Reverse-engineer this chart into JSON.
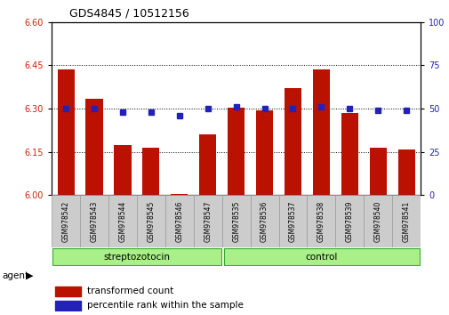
{
  "title": "GDS4845 / 10512156",
  "categories": [
    "GSM978542",
    "GSM978543",
    "GSM978544",
    "GSM978545",
    "GSM978546",
    "GSM978547",
    "GSM978535",
    "GSM978536",
    "GSM978537",
    "GSM978538",
    "GSM978539",
    "GSM978540",
    "GSM978541"
  ],
  "red_values": [
    6.435,
    6.335,
    6.175,
    6.165,
    6.005,
    6.21,
    6.305,
    6.295,
    6.37,
    6.435,
    6.285,
    6.165,
    6.16
  ],
  "blue_values": [
    50,
    50,
    48,
    48,
    46,
    50,
    51,
    50,
    50,
    51,
    50,
    49,
    49
  ],
  "ylim_left": [
    6.0,
    6.6
  ],
  "ylim_right": [
    0,
    100
  ],
  "yticks_left": [
    6.0,
    6.15,
    6.3,
    6.45,
    6.6
  ],
  "yticks_right": [
    0,
    25,
    50,
    75,
    100
  ],
  "grid_lines": [
    6.15,
    6.3,
    6.45
  ],
  "group1_label": "streptozotocin",
  "group2_label": "control",
  "group1_count": 6,
  "group2_count": 7,
  "legend_red": "transformed count",
  "legend_blue": "percentile rank within the sample",
  "agent_label": "agent",
  "bar_color": "#bb1100",
  "blue_color": "#2222bb",
  "group1_color": "#aaf088",
  "group2_color": "#aaf088",
  "bg_color": "#ffffff",
  "plot_bg": "#ffffff",
  "tick_color_left": "#cc2200",
  "tick_color_right": "#2222bb",
  "cell_bg": "#cccccc",
  "cell_edge": "#999999"
}
